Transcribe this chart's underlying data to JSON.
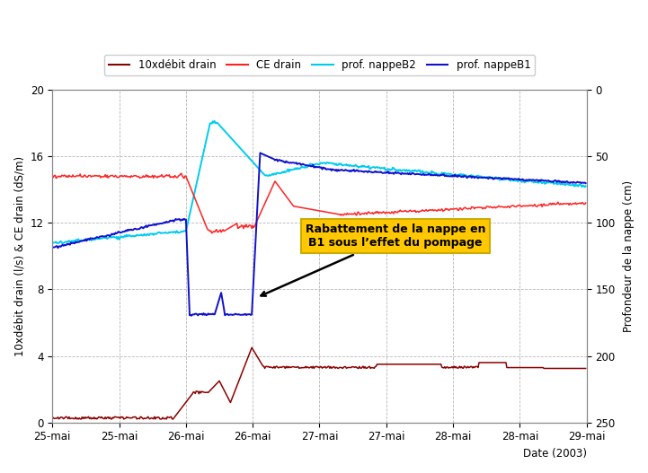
{
  "xlabel": "Date (2003)",
  "ylabel_left": "10xdébit drain (l/s) & CE drain (dS/m)",
  "ylabel_right": "Profondeur de la nappe (cm)",
  "ylim_left": [
    0,
    20
  ],
  "yticks_left": [
    0,
    4,
    8,
    12,
    16,
    20
  ],
  "xlim": [
    0,
    576
  ],
  "background_color": "#ffffff",
  "plot_bg_color": "#ffffff",
  "grid_color": "#b0b0b0",
  "legend_labels": [
    "10xdébit drain",
    "CE drain",
    "prof. nappeB2",
    "prof. nappeB1"
  ],
  "legend_colors": [
    "#8b0000",
    "#ff2222",
    "#00ccee",
    "#1111cc"
  ],
  "annotation_text": "Rabattement de la nappe en\nB1 sous l’effet du pompage",
  "annotation_box_color": "#ffc800",
  "x_tick_labels": [
    "25-mai",
    "25-mai",
    "26-mai",
    "26-mai",
    "27-mai",
    "27-mai",
    "28-mai",
    "28-mai",
    "29-mai"
  ],
  "x_tick_positions": [
    0,
    72,
    144,
    216,
    288,
    360,
    432,
    504,
    576
  ]
}
